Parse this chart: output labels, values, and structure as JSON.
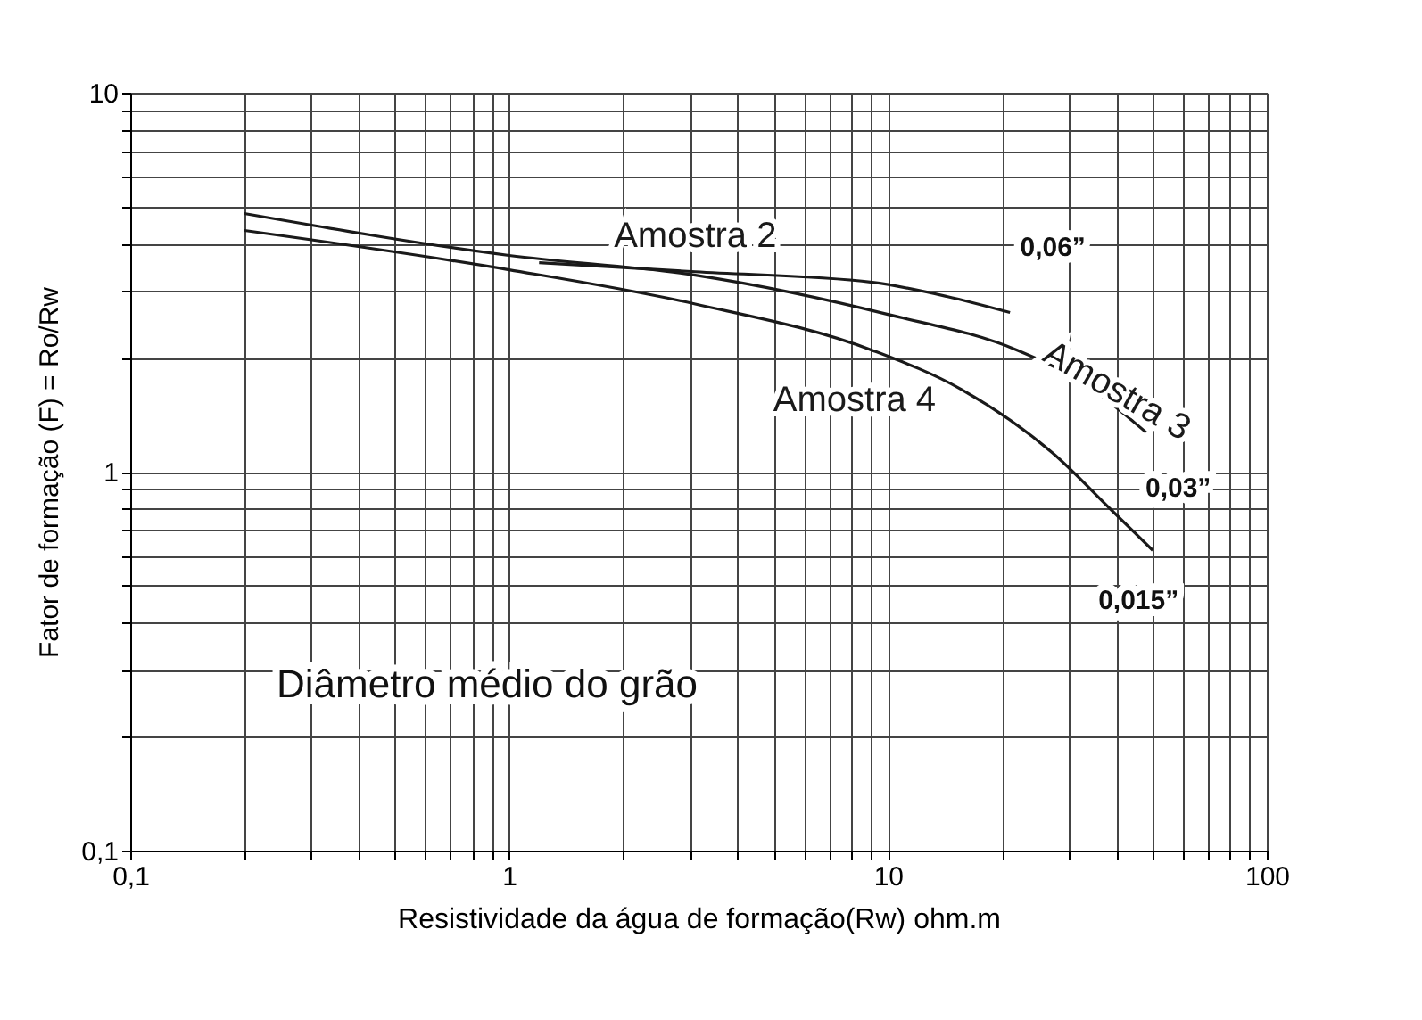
{
  "chart_data": {
    "type": "line",
    "xlabel": "Resistividade da água de formação(Rw) ohm.m",
    "ylabel": "Fator de formação (F) = Ro/Rw",
    "log": "xy",
    "grid": true,
    "line_style": "solid",
    "xlim": [
      0.1,
      100
    ],
    "ylim": [
      0.1,
      10
    ],
    "xticks": [
      {
        "value": 0.1,
        "label": "0,1"
      },
      {
        "value": 0.2,
        "label": null
      },
      {
        "value": 0.3,
        "label": null
      },
      {
        "value": 0.4,
        "label": null
      },
      {
        "value": 0.5,
        "label": null
      },
      {
        "value": 0.6,
        "label": null
      },
      {
        "value": 0.7,
        "label": null
      },
      {
        "value": 0.8,
        "label": null
      },
      {
        "value": 0.9,
        "label": null
      },
      1,
      {
        "value": 2,
        "label": null
      },
      {
        "value": 3,
        "label": null
      },
      {
        "value": 4,
        "label": null
      },
      {
        "value": 5,
        "label": null
      },
      {
        "value": 6,
        "label": null
      },
      {
        "value": 7,
        "label": null
      },
      {
        "value": 8,
        "label": null
      },
      {
        "value": 9,
        "label": null
      },
      10,
      {
        "value": 20,
        "label": null
      },
      {
        "value": 30,
        "label": null
      },
      {
        "value": 40,
        "label": null
      },
      {
        "value": 50,
        "label": null
      },
      {
        "value": 60,
        "label": null
      },
      {
        "value": 70,
        "label": null
      },
      {
        "value": 80,
        "label": null
      },
      {
        "value": 90,
        "label": null
      },
      100
    ],
    "yticks": [
      {
        "value": 0.1,
        "label": "0,1"
      },
      {
        "value": 0.2,
        "label": null
      },
      {
        "value": 0.3,
        "label": null
      },
      {
        "value": 0.4,
        "label": null
      },
      {
        "value": 0.5,
        "label": null
      },
      {
        "value": 0.6,
        "label": null
      },
      {
        "value": 0.7,
        "label": null
      },
      {
        "value": 0.8,
        "label": null
      },
      {
        "value": 0.9,
        "label": null
      },
      1,
      {
        "value": 2,
        "label": null
      },
      {
        "value": 3,
        "label": null
      },
      {
        "value": 4,
        "label": null
      },
      {
        "value": 5,
        "label": null
      },
      {
        "value": 6,
        "label": null
      },
      {
        "value": 7,
        "label": null
      },
      {
        "value": 8,
        "label": null
      },
      {
        "value": 9,
        "label": null
      },
      10
    ],
    "series": [
      {
        "name": "Amostra 2",
        "color": "#1a1a1a",
        "x": [
          1.2,
          3.1,
          9.1,
          14.3,
          21
        ],
        "values": [
          3.56,
          3.37,
          3.16,
          2.9,
          2.63
        ]
      },
      {
        "name": "Amostra 3",
        "color": "#1a1a1a",
        "x": [
          0.2,
          1,
          3.1,
          10,
          22,
          32.6,
          48
        ],
        "values": [
          4.8,
          3.72,
          3.3,
          2.6,
          2.09,
          1.72,
          1.27
        ]
      },
      {
        "name": "Amostra 4",
        "color": "#1a1a1a",
        "x": [
          0.2,
          1,
          3.1,
          9.1,
          15.6,
          27.5,
          39,
          50
        ],
        "values": [
          4.33,
          3.41,
          2.77,
          2.09,
          1.65,
          1.11,
          0.79,
          0.62
        ]
      }
    ],
    "annotations": [
      "0,06”",
      "0,03”",
      "0,015”",
      "Diâmetro médio do grão"
    ]
  }
}
